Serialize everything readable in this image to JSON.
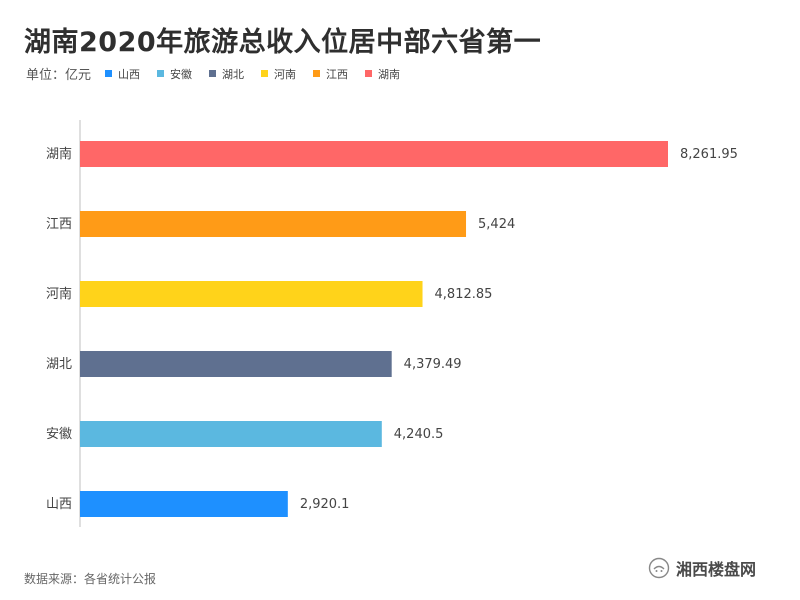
{
  "title": "湖南2020年旅游总收入位居中部六省第一",
  "unit_label": "单位：亿元",
  "legend": [
    {
      "name": "山西",
      "color": "#1e90ff"
    },
    {
      "name": "安徽",
      "color": "#5bb8e0"
    },
    {
      "name": "湖北",
      "color": "#5f7090"
    },
    {
      "name": "河南",
      "color": "#ffd31a"
    },
    {
      "name": "江西",
      "color": "#ff9b17"
    },
    {
      "name": "湖南",
      "color": "#ff6767"
    }
  ],
  "source": "数据来源：各省统计公报",
  "watermark": "湘西楼盘网",
  "chart_data": {
    "type": "bar",
    "orientation": "horizontal",
    "title": "湖南2020年旅游总收入位居中部六省第一",
    "ylabel": "单位：亿元",
    "categories": [
      "湖南",
      "江西",
      "河南",
      "湖北",
      "安徽",
      "山西"
    ],
    "values": [
      8261.95,
      5424,
      4812.85,
      4379.49,
      4240.5,
      2920.1
    ],
    "value_labels": [
      "8,261.95",
      "5,424",
      "4,812.85",
      "4,379.49",
      "4,240.5",
      "2,920.1"
    ],
    "colors": [
      "#ff6767",
      "#ff9b17",
      "#ffd31a",
      "#5f7090",
      "#5bb8e0",
      "#1e90ff"
    ],
    "xlim": [
      0,
      8261.95
    ],
    "grid": false
  }
}
